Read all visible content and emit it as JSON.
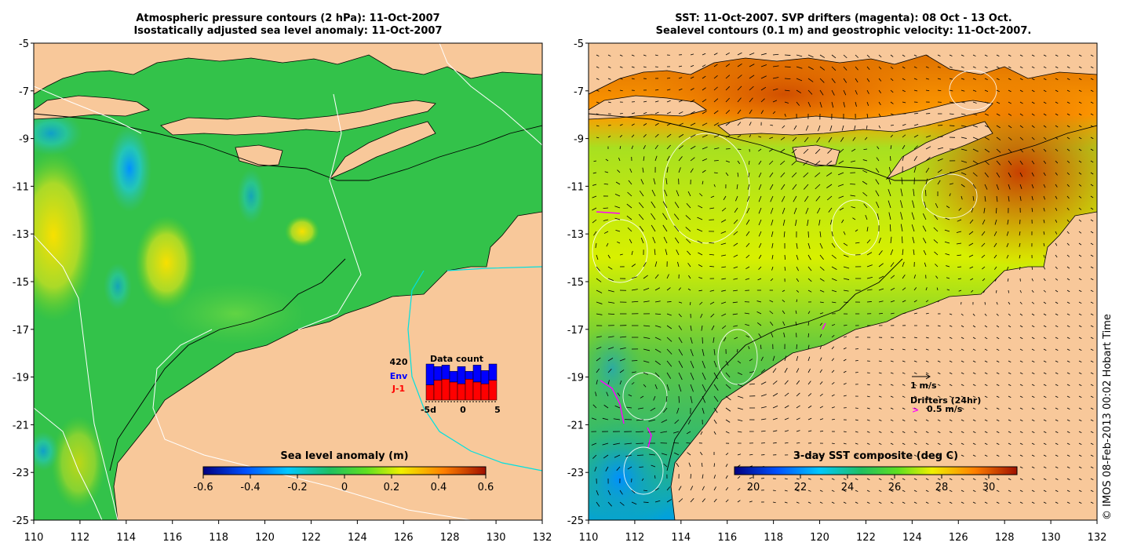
{
  "left_panel": {
    "title_line1": "Atmospheric pressure contours (2 hPa): 11-Oct-2007",
    "title_line2": "Isostatically adjusted sea level anomaly: 11-Oct-2007",
    "colorbar": {
      "label": "Sea level anomaly (m)",
      "ticks": [
        "-0.6",
        "-0.4",
        "-0.2",
        "0",
        "0.2",
        "0.4",
        "0.6"
      ]
    },
    "inset": {
      "title": "Data count",
      "total": "420",
      "series": [
        {
          "name": "Env",
          "color": "#0000ff"
        },
        {
          "name": "J-1",
          "color": "#ff0000"
        }
      ],
      "bar_env": [
        1.0,
        0.93,
        0.97,
        0.8,
        0.93,
        0.8,
        0.97,
        0.82,
        1.0
      ],
      "bar_j1": [
        0.42,
        0.55,
        0.58,
        0.5,
        0.45,
        0.58,
        0.5,
        0.45,
        0.55
      ],
      "xticks": [
        "-5d",
        "0",
        "5"
      ]
    }
  },
  "right_panel": {
    "title_line1": "SST: 11-Oct-2007. SVP drifters (magenta): 08 Oct - 13 Oct.",
    "title_line2": "Sealevel contours (0.1 m) and geostrophic velocity: 11-Oct-2007.",
    "colorbar": {
      "label": "3-day SST composite (deg C)",
      "ticks": [
        "20",
        "22",
        "24",
        "26",
        "28",
        "30"
      ]
    },
    "velocity_legend": "1 m/s",
    "drifter_legend_title": "Drifters (24hr)",
    "drifter_legend_value": "0.5 m/s"
  },
  "axes": {
    "xticks": [
      "110",
      "112",
      "114",
      "116",
      "118",
      "120",
      "122",
      "124",
      "126",
      "128",
      "130",
      "132"
    ],
    "yticks": [
      "-5",
      "-7",
      "-9",
      "-11",
      "-13",
      "-15",
      "-17",
      "-19",
      "-21",
      "-23",
      "-25"
    ]
  },
  "credit": "© IMOS 08-Feb-2013 00:02 Hobart Time",
  "colors": {
    "land": "#f8c89a",
    "sea_base_left": "#33c24a",
    "sea_base_right": "#ffb300",
    "drifter": "#ff00ff",
    "shelf_contour": "#00e0e0"
  }
}
